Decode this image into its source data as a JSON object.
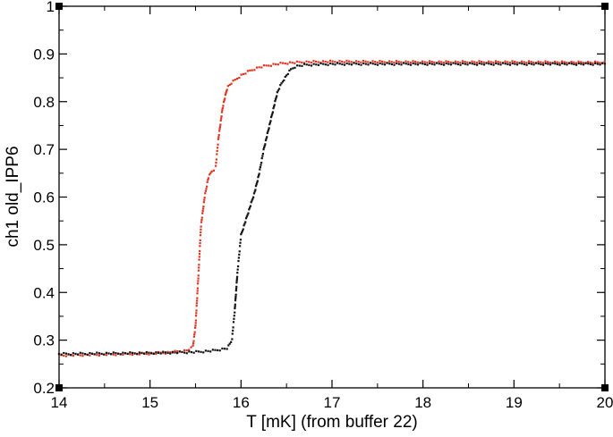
{
  "chart_data": {
    "type": "scatter",
    "xlabel": "T [mK] (from buffer 22)",
    "ylabel": "ch1 old_IPP6",
    "xlim": [
      14,
      20
    ],
    "ylim": [
      0.2,
      1.0
    ],
    "xticks": [
      "14",
      "15",
      "16",
      "17",
      "18",
      "19",
      "20"
    ],
    "yticks": [
      "0.2",
      "0.3",
      "0.4",
      "0.5",
      "0.6",
      "0.7",
      "0.8",
      "0.9",
      "1"
    ],
    "grid": false,
    "series": [
      {
        "color": "#e0301e",
        "x": [
          14.0,
          14.5,
          15.0,
          15.2,
          15.4,
          15.47,
          15.5,
          15.53,
          15.56,
          15.6,
          15.64,
          15.68,
          15.72,
          15.75,
          15.8,
          15.85,
          15.9,
          16.0,
          16.1,
          16.2,
          16.3,
          16.4,
          16.5,
          16.7,
          17.0,
          18.0,
          19.0,
          20.0
        ],
        "y": [
          0.268,
          0.27,
          0.272,
          0.274,
          0.278,
          0.285,
          0.33,
          0.43,
          0.54,
          0.6,
          0.64,
          0.655,
          0.66,
          0.72,
          0.79,
          0.83,
          0.84,
          0.855,
          0.865,
          0.872,
          0.876,
          0.879,
          0.881,
          0.883,
          0.884,
          0.883,
          0.883,
          0.882
        ]
      },
      {
        "color": "#111111",
        "x": [
          14.0,
          14.5,
          15.0,
          15.5,
          15.7,
          15.85,
          15.9,
          15.93,
          15.96,
          16.0,
          16.05,
          16.1,
          16.15,
          16.2,
          16.25,
          16.3,
          16.35,
          16.4,
          16.45,
          16.5,
          16.55,
          16.6,
          16.7,
          17.0,
          18.0,
          19.0,
          20.0
        ],
        "y": [
          0.271,
          0.272,
          0.273,
          0.275,
          0.278,
          0.283,
          0.3,
          0.36,
          0.44,
          0.52,
          0.55,
          0.58,
          0.61,
          0.65,
          0.7,
          0.74,
          0.78,
          0.82,
          0.84,
          0.855,
          0.868,
          0.874,
          0.877,
          0.879,
          0.879,
          0.879,
          0.879
        ]
      }
    ]
  }
}
